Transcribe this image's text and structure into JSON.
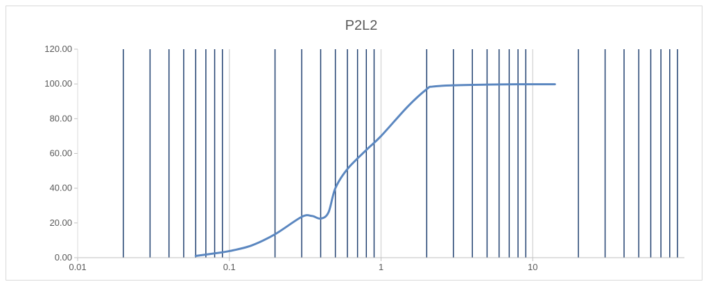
{
  "chart_data": {
    "type": "line",
    "title": "P2L2",
    "xlabel": "",
    "ylabel": "",
    "x_scale": "log",
    "xlim": [
      0.01,
      100
    ],
    "ylim": [
      0,
      120
    ],
    "x_tick_labels": [
      "0.01",
      "0.1",
      "1",
      "10"
    ],
    "y_tick_labels": [
      "0.00",
      "20.00",
      "40.00",
      "60.00",
      "80.00",
      "100.00",
      "120.00"
    ],
    "grid": "vertical minor lines (dark blue), light gray major decade lines",
    "legend": "none",
    "colors": {
      "series": "#5b87c0",
      "minor_grid": "#1f3f6f",
      "major_grid": "#d9d9d9",
      "text": "#595959"
    },
    "series": [
      {
        "x": [
          0.06,
          0.08,
          0.1,
          0.14,
          0.2,
          0.3,
          0.35,
          0.4,
          0.45,
          0.5,
          0.6,
          0.8,
          1,
          1.5,
          2,
          2.2,
          3,
          5,
          8,
          14
        ],
        "y": [
          1,
          2.5,
          3.8,
          7,
          13.5,
          23.5,
          24,
          22.5,
          26,
          40,
          51,
          62,
          70,
          87,
          97,
          98.5,
          99.2,
          99.6,
          99.8,
          99.8
        ]
      }
    ]
  }
}
